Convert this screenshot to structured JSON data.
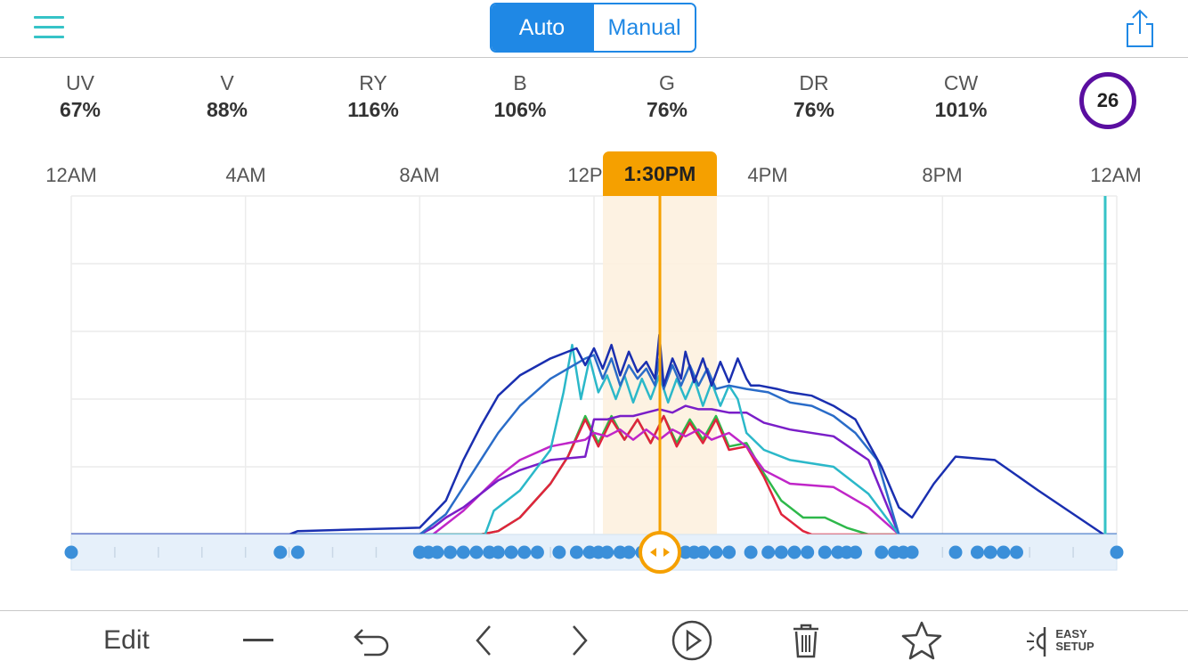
{
  "header": {
    "mode_tabs": [
      {
        "label": "Auto",
        "active": true
      },
      {
        "label": "Manual",
        "active": false
      }
    ],
    "accent_color": "#1f88e5",
    "menu_icon": "hamburger-icon",
    "share_icon": "share-icon"
  },
  "channels": [
    {
      "name": "UV",
      "value": "67%"
    },
    {
      "name": "V",
      "value": "88%"
    },
    {
      "name": "RY",
      "value": "116%"
    },
    {
      "name": "B",
      "value": "106%"
    },
    {
      "name": "G",
      "value": "76%"
    },
    {
      "name": "DR",
      "value": "76%"
    },
    {
      "name": "CW",
      "value": "101%"
    }
  ],
  "badge": {
    "value": "26",
    "color": "#5a0ea0"
  },
  "timeline": {
    "labels": [
      "12AM",
      "4AM",
      "8AM",
      "12P",
      "4PM",
      "8PM",
      "12AM"
    ],
    "current_time": "1:30PM",
    "highlight_color": "#f5a000"
  },
  "chart_data": {
    "type": "line",
    "x_unit": "hours",
    "xlim": [
      0,
      24
    ],
    "ylim": [
      0,
      100
    ],
    "grid": true,
    "series": [
      {
        "color": "#1a2fb0",
        "points": [
          [
            0,
            0
          ],
          [
            5,
            0
          ],
          [
            5.2,
            1
          ],
          [
            8,
            2
          ],
          [
            8.3,
            6
          ],
          [
            8.6,
            10
          ],
          [
            9,
            22
          ],
          [
            9.4,
            32
          ],
          [
            9.8,
            41
          ],
          [
            10.3,
            47
          ],
          [
            11,
            52
          ],
          [
            11.6,
            55
          ],
          [
            11.8,
            50
          ],
          [
            12,
            55
          ],
          [
            12.2,
            49
          ],
          [
            12.4,
            56
          ],
          [
            12.6,
            47
          ],
          [
            12.8,
            54
          ],
          [
            13,
            48
          ],
          [
            13.2,
            51
          ],
          [
            13.4,
            46
          ],
          [
            13.5,
            59
          ],
          [
            13.6,
            44
          ],
          [
            13.8,
            52
          ],
          [
            14,
            46
          ],
          [
            14.1,
            54
          ],
          [
            14.3,
            45
          ],
          [
            14.5,
            52
          ],
          [
            14.7,
            44
          ],
          [
            14.9,
            51
          ],
          [
            15.1,
            45
          ],
          [
            15.3,
            52
          ],
          [
            15.5,
            46
          ],
          [
            15.6,
            44
          ],
          [
            15.8,
            44
          ],
          [
            16.2,
            43
          ],
          [
            16.5,
            42
          ],
          [
            17,
            41
          ],
          [
            17.5,
            38
          ],
          [
            18,
            34
          ],
          [
            18.3,
            27
          ],
          [
            18.6,
            20
          ],
          [
            19,
            8
          ],
          [
            19.3,
            5
          ],
          [
            19.8,
            15
          ],
          [
            20.3,
            23
          ],
          [
            21.2,
            22
          ],
          [
            22.2,
            13
          ],
          [
            23.7,
            0
          ]
        ]
      },
      {
        "color": "#2a6cc8",
        "points": [
          [
            0,
            0
          ],
          [
            8,
            0
          ],
          [
            8.3,
            3
          ],
          [
            8.6,
            6
          ],
          [
            9,
            14
          ],
          [
            9.4,
            22
          ],
          [
            9.8,
            30
          ],
          [
            10.3,
            38
          ],
          [
            11,
            46
          ],
          [
            11.8,
            52
          ],
          [
            12,
            53
          ],
          [
            12.2,
            46
          ],
          [
            12.4,
            52
          ],
          [
            12.6,
            44
          ],
          [
            12.8,
            50
          ],
          [
            13,
            46
          ],
          [
            13.2,
            49
          ],
          [
            13.4,
            44
          ],
          [
            13.5,
            52
          ],
          [
            13.6,
            43
          ],
          [
            13.8,
            50
          ],
          [
            14,
            44
          ],
          [
            14.2,
            50
          ],
          [
            14.4,
            44
          ],
          [
            14.6,
            49
          ],
          [
            14.8,
            43
          ],
          [
            15.1,
            44
          ],
          [
            15.5,
            43
          ],
          [
            16,
            42
          ],
          [
            16.5,
            39
          ],
          [
            17,
            38
          ],
          [
            17.5,
            35
          ],
          [
            18,
            30
          ],
          [
            18.5,
            22
          ],
          [
            19,
            0
          ],
          [
            24,
            0
          ]
        ]
      },
      {
        "color": "#2bb8c9",
        "points": [
          [
            0,
            0
          ],
          [
            9.5,
            0
          ],
          [
            9.7,
            7
          ],
          [
            10.3,
            13
          ],
          [
            11,
            25
          ],
          [
            11.3,
            42
          ],
          [
            11.5,
            56
          ],
          [
            11.7,
            40
          ],
          [
            11.9,
            52
          ],
          [
            12.1,
            42
          ],
          [
            12.3,
            47
          ],
          [
            12.5,
            40
          ],
          [
            12.7,
            47
          ],
          [
            12.9,
            39
          ],
          [
            13.1,
            46
          ],
          [
            13.3,
            40
          ],
          [
            13.5,
            47
          ],
          [
            13.7,
            39
          ],
          [
            13.9,
            46
          ],
          [
            14.1,
            40
          ],
          [
            14.3,
            46
          ],
          [
            14.5,
            38
          ],
          [
            14.7,
            45
          ],
          [
            14.9,
            38
          ],
          [
            15.1,
            44
          ],
          [
            15.3,
            40
          ],
          [
            15.5,
            30
          ],
          [
            15.9,
            25
          ],
          [
            16.5,
            22
          ],
          [
            17.5,
            20
          ],
          [
            18.3,
            12
          ],
          [
            19,
            0
          ],
          [
            24,
            0
          ]
        ]
      },
      {
        "color": "#7a1ec8",
        "points": [
          [
            0,
            0
          ],
          [
            8,
            0
          ],
          [
            8.3,
            2
          ],
          [
            8.6,
            5
          ],
          [
            9,
            8
          ],
          [
            9.4,
            12
          ],
          [
            9.8,
            16
          ],
          [
            10.3,
            19
          ],
          [
            11,
            22
          ],
          [
            11.8,
            23
          ],
          [
            12,
            34
          ],
          [
            12.3,
            34
          ],
          [
            12.6,
            35
          ],
          [
            12.9,
            35
          ],
          [
            13.2,
            36
          ],
          [
            13.5,
            37
          ],
          [
            13.8,
            36
          ],
          [
            14.1,
            38
          ],
          [
            14.4,
            37
          ],
          [
            14.7,
            37
          ],
          [
            15.1,
            36
          ],
          [
            15.5,
            36
          ],
          [
            15.9,
            33
          ],
          [
            16.5,
            31
          ],
          [
            17.5,
            29
          ],
          [
            18.3,
            22
          ],
          [
            19,
            0
          ],
          [
            24,
            0
          ]
        ]
      },
      {
        "color": "#c026c8",
        "points": [
          [
            0,
            0
          ],
          [
            8.3,
            0
          ],
          [
            8.6,
            3
          ],
          [
            9,
            7
          ],
          [
            9.4,
            12
          ],
          [
            9.8,
            17
          ],
          [
            10.3,
            22
          ],
          [
            11,
            26
          ],
          [
            11.8,
            28
          ],
          [
            12,
            30
          ],
          [
            12.3,
            29
          ],
          [
            12.6,
            31
          ],
          [
            12.9,
            28
          ],
          [
            13.2,
            31
          ],
          [
            13.5,
            28
          ],
          [
            13.8,
            31
          ],
          [
            14.1,
            29
          ],
          [
            14.4,
            31
          ],
          [
            14.7,
            28
          ],
          [
            15.1,
            30
          ],
          [
            15.5,
            26
          ],
          [
            15.9,
            19
          ],
          [
            16.5,
            15
          ],
          [
            17.5,
            14
          ],
          [
            18.3,
            8
          ],
          [
            19,
            0
          ],
          [
            24,
            0
          ]
        ]
      },
      {
        "color": "#e0243c",
        "points": [
          [
            0,
            0
          ],
          [
            9.4,
            0
          ],
          [
            9.8,
            1
          ],
          [
            10.3,
            5
          ],
          [
            11,
            15
          ],
          [
            11.4,
            23
          ],
          [
            11.8,
            34
          ],
          [
            12.1,
            26
          ],
          [
            12.4,
            34
          ],
          [
            12.7,
            28
          ],
          [
            13,
            34
          ],
          [
            13.3,
            27
          ],
          [
            13.6,
            35
          ],
          [
            13.9,
            26
          ],
          [
            14.2,
            33
          ],
          [
            14.5,
            27
          ],
          [
            14.8,
            34
          ],
          [
            15.1,
            25
          ],
          [
            15.5,
            26
          ],
          [
            15.9,
            17
          ],
          [
            16.3,
            6
          ],
          [
            16.8,
            1
          ],
          [
            17,
            0
          ],
          [
            24,
            0
          ]
        ]
      },
      {
        "color": "#2eb84a",
        "points": [
          [
            0,
            0
          ],
          [
            9.4,
            0
          ],
          [
            9.8,
            1
          ],
          [
            10.3,
            5
          ],
          [
            11,
            15
          ],
          [
            11.4,
            23
          ],
          [
            11.8,
            35
          ],
          [
            12.1,
            27
          ],
          [
            12.4,
            35
          ],
          [
            12.7,
            28
          ],
          [
            13,
            34
          ],
          [
            13.3,
            27
          ],
          [
            13.6,
            35
          ],
          [
            13.9,
            27
          ],
          [
            14.2,
            34
          ],
          [
            14.5,
            28
          ],
          [
            14.8,
            35
          ],
          [
            15.1,
            26
          ],
          [
            15.5,
            27
          ],
          [
            15.9,
            18
          ],
          [
            16.3,
            10
          ],
          [
            16.8,
            5
          ],
          [
            17.3,
            5
          ],
          [
            17.8,
            2
          ],
          [
            18.3,
            0
          ],
          [
            24,
            0
          ]
        ]
      }
    ],
    "keyframes_hours": [
      0,
      4.8,
      5.2,
      8,
      8.2,
      8.4,
      8.7,
      9,
      9.3,
      9.6,
      9.8,
      10.1,
      10.4,
      10.7,
      11.2,
      11.6,
      11.9,
      12.1,
      12.3,
      12.6,
      12.8,
      13.1,
      13.3,
      13.6,
      13.8,
      14.1,
      14.3,
      14.5,
      14.8,
      15.1,
      15.6,
      16,
      16.3,
      16.6,
      16.9,
      17.3,
      17.6,
      17.8,
      18,
      18.6,
      18.9,
      19.1,
      19.3,
      20.3,
      20.8,
      21.1,
      21.4,
      21.7,
      24
    ]
  },
  "toolbar": {
    "edit_label": "Edit",
    "easy_setup_line1": "EASY",
    "easy_setup_line2": "SETUP"
  }
}
